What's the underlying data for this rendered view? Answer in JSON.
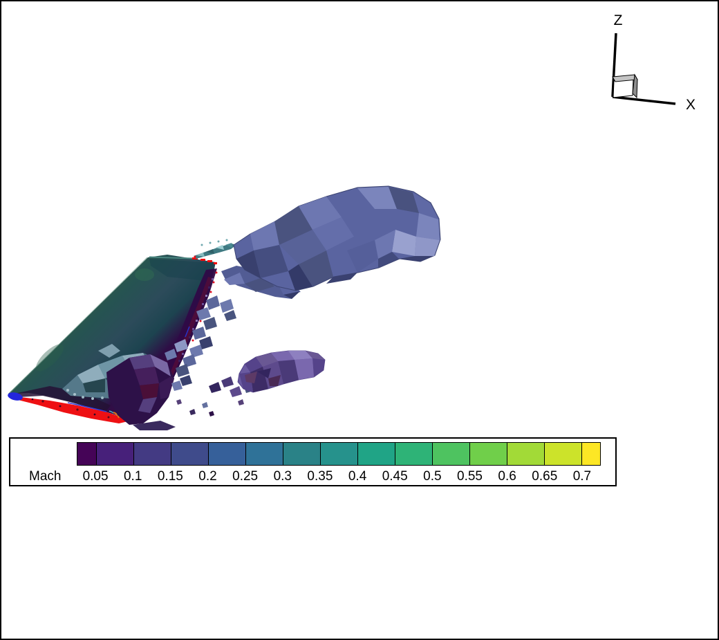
{
  "window": {
    "background": "#ffffff",
    "frame_color": "#000000"
  },
  "axes_indicator": {
    "z_label": "Z",
    "x_label": "X",
    "line_color": "#000000",
    "cube_top_color": "#c4c4c4",
    "cube_side_color": "#8e8e8e"
  },
  "legend": {
    "title": "Mach",
    "tick_labels": [
      "0.05",
      "0.1",
      "0.15",
      "0.2",
      "0.25",
      "0.3",
      "0.35",
      "0.4",
      "0.45",
      "0.5",
      "0.55",
      "0.6",
      "0.65",
      "0.7"
    ],
    "band_colors": [
      "#450457",
      "#47207a",
      "#433a83",
      "#3f4b8b",
      "#36609a",
      "#2f7298",
      "#2a8287",
      "#26928c",
      "#20a486",
      "#2eb377",
      "#4ec360",
      "#70cf4a",
      "#a2da37",
      "#cce32a",
      "#fde725"
    ],
    "band_weights": [
      0.5,
      1,
      1,
      1,
      1,
      1,
      1,
      1,
      1,
      1,
      1,
      1,
      1,
      1,
      0.5
    ],
    "frame_color": "#000000",
    "background": "#ffffff",
    "text_color": "#000000"
  },
  "chart_data": {
    "type": "heatmap",
    "title": "",
    "variable": "Mach",
    "levels": [
      0.05,
      0.1,
      0.15,
      0.2,
      0.25,
      0.3,
      0.35,
      0.4,
      0.45,
      0.5,
      0.55,
      0.6,
      0.65,
      0.7
    ],
    "colormap": [
      "#450457",
      "#47207a",
      "#433a83",
      "#3f4b8b",
      "#36609a",
      "#2f7298",
      "#2a8287",
      "#26928c",
      "#20a486",
      "#2eb377",
      "#4ec360",
      "#70cf4a",
      "#a2da37",
      "#cce32a",
      "#fde725"
    ],
    "legend_title": "Mach",
    "legend_position": "bottom-left",
    "orientation_axes": [
      "Z",
      "X"
    ],
    "grid": false
  },
  "scene": {
    "palette": {
      "wing_leading_green": "#2b5a49",
      "wing_mid_teal": "#2c4b5a",
      "wing_dark_teal": "#1d4450",
      "wing_trailing_purple": "#2f0a47",
      "wing_maroon_streak": "#500c3a",
      "leading_edge_red": "#ee1013",
      "wingtip_blue": "#2326dd",
      "wake_base": "#5a64a0",
      "wake_light": "#7b85bc",
      "wake_highlight": "#99a1cf",
      "wake_dark": "#424b7d",
      "lower_vortex_base": "#6a5aa0",
      "lower_vortex_dark": "#3d2c66",
      "debris_slate": "#5b679b",
      "debris_teal": "#55798a",
      "debris_teal_light": "#8fadbc",
      "debris_purple": "#2d1148",
      "neck_teal": "#3f7a82"
    }
  }
}
